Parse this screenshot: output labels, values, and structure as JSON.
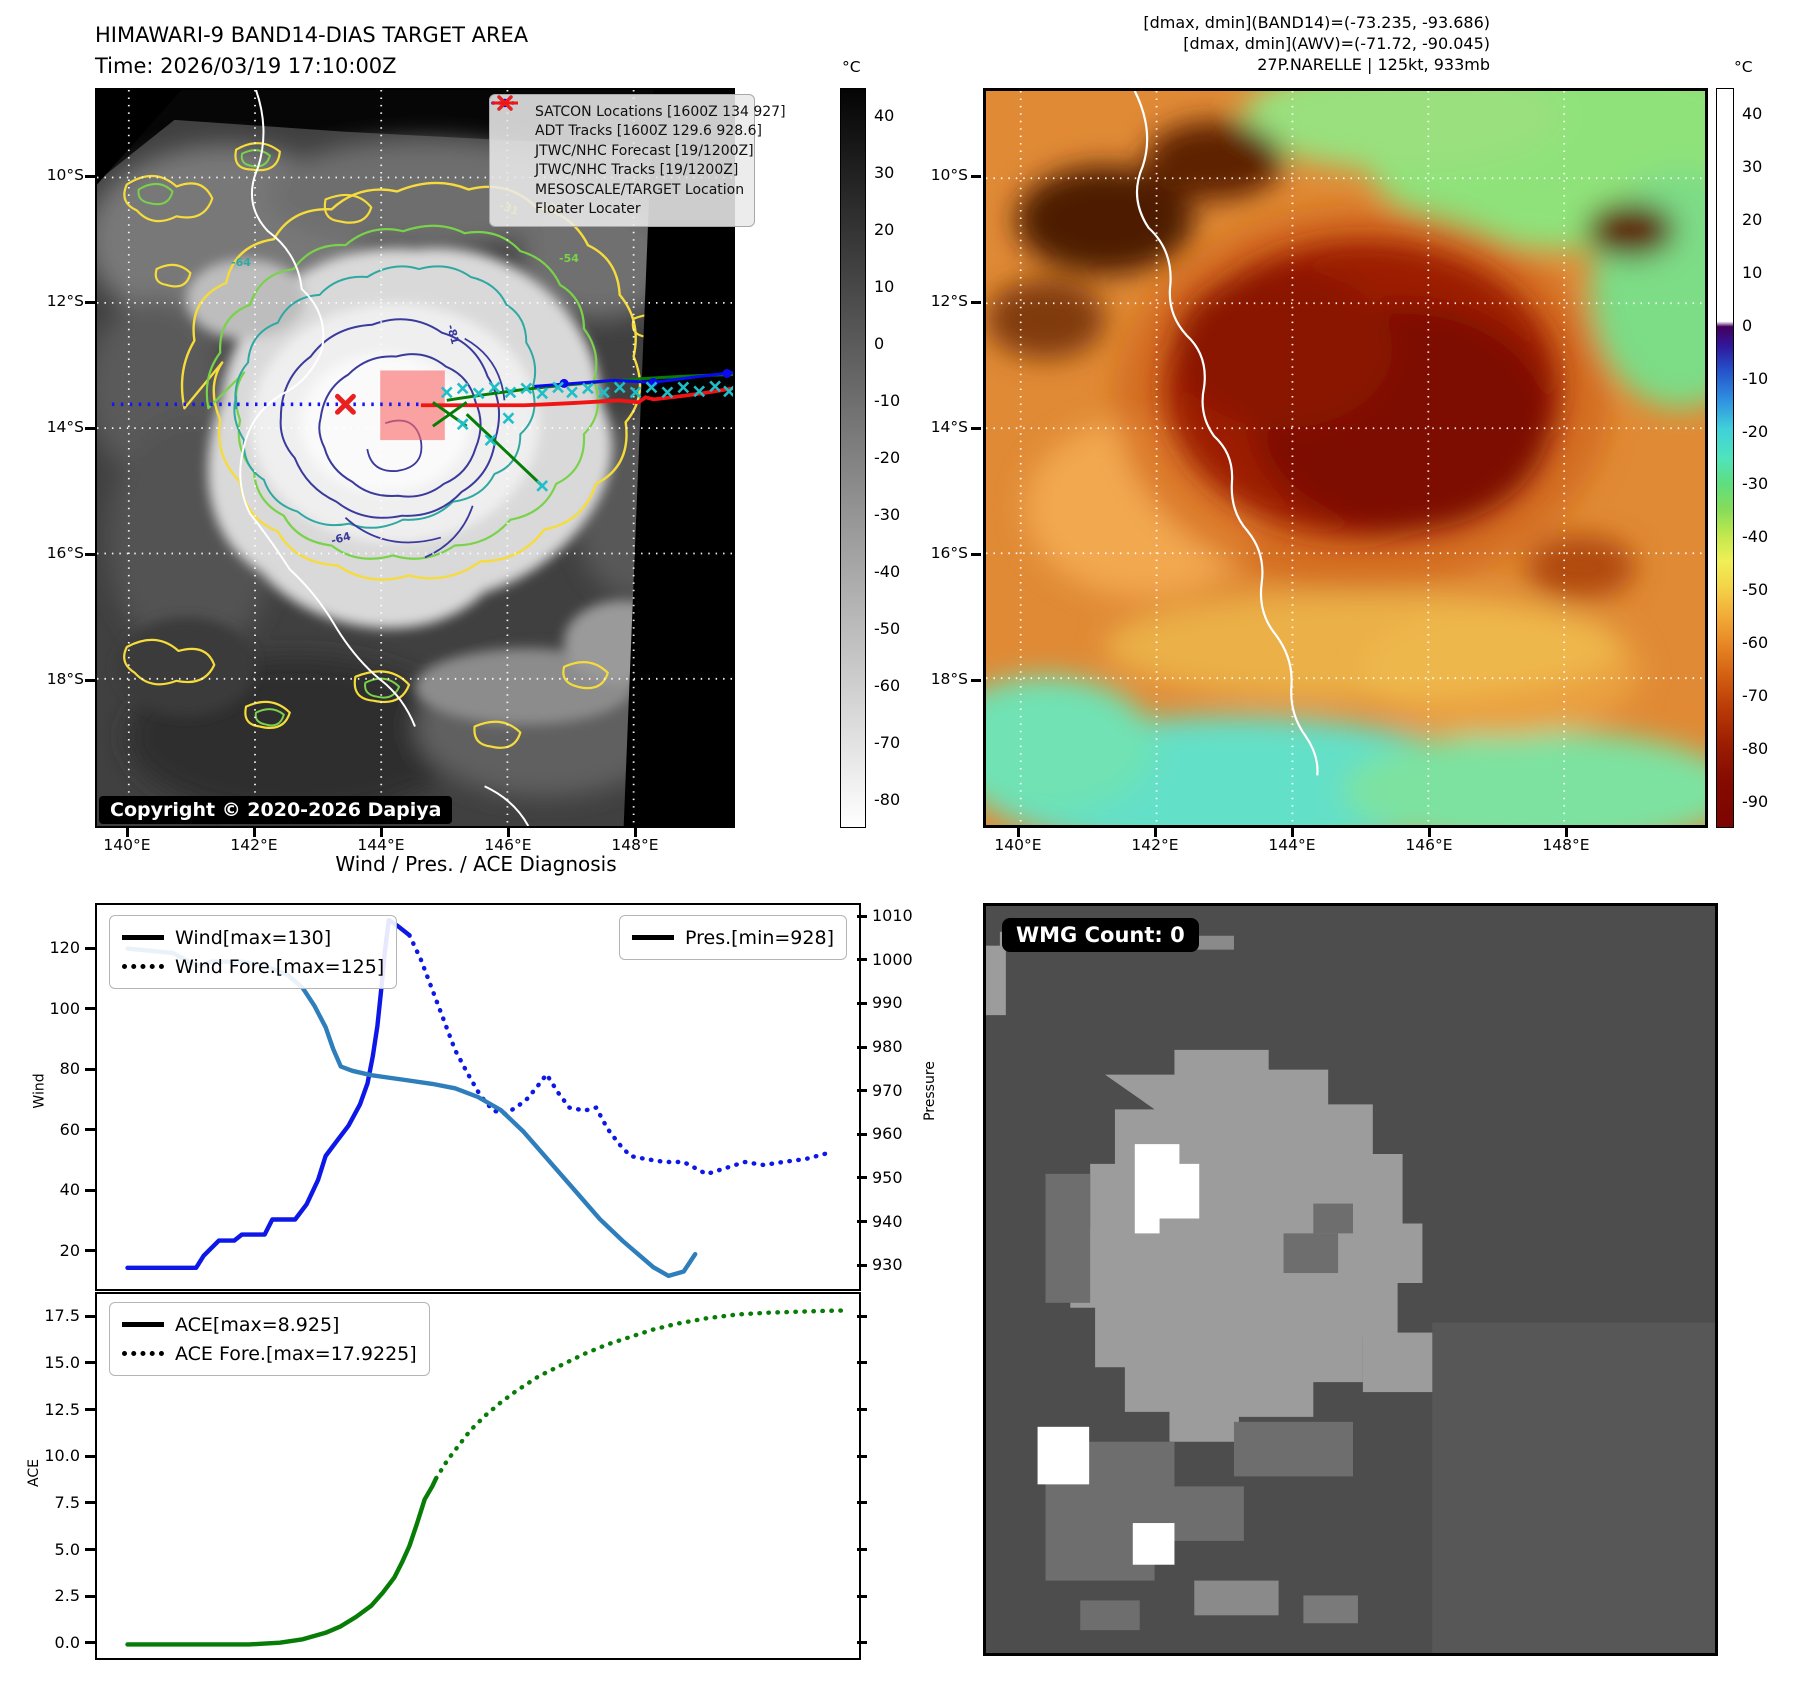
{
  "header": {
    "title_line1": "HIMAWARI-9 BAND14-DIAS TARGET AREA",
    "title_line2": "Time: 2026/03/19 17:10:00Z",
    "info_line1": "[dmax, dmin](BAND14)=(-73.235, -93.686)",
    "info_line2": "[dmax, dmin](AWV)=(-71.72, -90.045)",
    "info_line3": "27P.NARELLE | 125kt, 933mb"
  },
  "band14_map": {
    "lat_ticks": [
      "10°S",
      "12°S",
      "14°S",
      "16°S",
      "18°S"
    ],
    "lon_ticks": [
      "140°E",
      "142°E",
      "144°E",
      "146°E",
      "148°E"
    ],
    "legend": [
      {
        "type": "satcon",
        "label": "SATCON Locations [1600Z 134 927]"
      },
      {
        "type": "adt",
        "label": "ADT Tracks [1600Z 129.6 928.6]"
      },
      {
        "type": "forecast",
        "label": "JTWC/NHC Forecast [19/1200Z]"
      },
      {
        "type": "tracks",
        "label": "JTWC/NHC Tracks [19/1200Z]"
      },
      {
        "type": "target",
        "label": "MESOSCALE/TARGET Location"
      },
      {
        "type": "floater",
        "label": "Floater Locater"
      }
    ],
    "copyright": "Copyright © 2020-2026 Dapiya",
    "contour_labels": [
      "-64",
      "-31",
      "-81",
      "-54",
      "-64",
      "-31"
    ],
    "colorbar": {
      "unit": "°C",
      "vmax": 45,
      "vmin": -85,
      "ticks": [
        40,
        30,
        20,
        10,
        0,
        -10,
        -20,
        -30,
        -40,
        -50,
        -60,
        -70,
        -80
      ]
    }
  },
  "awv_map": {
    "lat_ticks": [
      "10°S",
      "12°S",
      "14°S",
      "16°S",
      "18°S"
    ],
    "lon_ticks": [
      "140°E",
      "142°E",
      "144°E",
      "146°E",
      "148°E"
    ],
    "colorbar": {
      "unit": "°C",
      "vmax": 45,
      "vmin": -95,
      "ticks": [
        40,
        30,
        20,
        10,
        0,
        -10,
        -20,
        -30,
        -40,
        -50,
        -60,
        -70,
        -80,
        -90
      ]
    }
  },
  "wmg_panel": {
    "badge": "WMG Count: 0"
  },
  "diagnosis": {
    "title": "Wind / Pres. / ACE Diagnosis",
    "wind_label": "Wind",
    "pressure_label": "Pressure",
    "ace_label": "ACE",
    "wind_ticks": [
      20,
      40,
      60,
      80,
      100,
      120
    ],
    "pressure_ticks": [
      930,
      940,
      950,
      960,
      970,
      980,
      990,
      1000,
      1010
    ],
    "ace_ticks": [
      "0.0",
      "2.5",
      "5.0",
      "7.5",
      "10.0",
      "12.5",
      "15.0",
      "17.5"
    ],
    "legend_wind": "Wind[max=130]",
    "legend_wind_fore": "Wind Fore.[max=125]",
    "legend_pres": "Pres.[min=928]",
    "legend_ace": "ACE[max=8.925]",
    "legend_ace_fore": "ACE Fore.[max=17.9225]"
  },
  "colors": {
    "satcon_cyan": "#1fbfc7",
    "adt_green": "#067d06",
    "jtwc_blue": "#0a0af0",
    "target_red": "#ea1f1f",
    "floater_red": "#f01414",
    "wind_blue": "#0d17e8",
    "pressure_steelblue": "#2e7ebc",
    "ace_green": "#077d07",
    "target_box_pink": "#fa6a6a"
  },
  "chart_data": [
    {
      "type": "line",
      "title": "Wind / Pres. / ACE Diagnosis",
      "ylabel": "Wind",
      "y2label": "Pressure",
      "xlim": [
        0,
        1
      ],
      "ylim": [
        8,
        135
      ],
      "y2lim": [
        925,
        1013
      ],
      "grid": false,
      "series": [
        {
          "name": "Wind[max=130]",
          "axis": "left",
          "style": "solid",
          "color": "#0d17e8",
          "points": [
            [
              0.04,
              15
            ],
            [
              0.13,
              15
            ],
            [
              0.14,
              19
            ],
            [
              0.16,
              24
            ],
            [
              0.18,
              24
            ],
            [
              0.19,
              26
            ],
            [
              0.22,
              26
            ],
            [
              0.23,
              31
            ],
            [
              0.26,
              31
            ],
            [
              0.275,
              36
            ],
            [
              0.29,
              44
            ],
            [
              0.3,
              52
            ],
            [
              0.315,
              57
            ],
            [
              0.33,
              62
            ],
            [
              0.345,
              69
            ],
            [
              0.355,
              76
            ],
            [
              0.362,
              85
            ],
            [
              0.368,
              95
            ],
            [
              0.373,
              107
            ],
            [
              0.378,
              120
            ],
            [
              0.383,
              130
            ],
            [
              0.395,
              128
            ],
            [
              0.41,
              125
            ]
          ]
        },
        {
          "name": "Wind Fore.[max=125]",
          "axis": "left",
          "style": "dotted",
          "color": "#0d17e8",
          "points": [
            [
              0.41,
              125
            ],
            [
              0.425,
              117
            ],
            [
              0.44,
              107
            ],
            [
              0.455,
              97
            ],
            [
              0.47,
              87
            ],
            [
              0.487,
              79
            ],
            [
              0.503,
              72
            ],
            [
              0.52,
              67
            ],
            [
              0.535,
              66
            ],
            [
              0.55,
              68
            ],
            [
              0.565,
              71
            ],
            [
              0.578,
              75
            ],
            [
              0.59,
              79
            ],
            [
              0.605,
              73
            ],
            [
              0.62,
              68
            ],
            [
              0.64,
              67
            ],
            [
              0.655,
              68
            ],
            [
              0.67,
              61
            ],
            [
              0.685,
              56
            ],
            [
              0.7,
              52
            ],
            [
              0.72,
              51
            ],
            [
              0.745,
              50
            ],
            [
              0.77,
              50
            ],
            [
              0.8,
              46
            ],
            [
              0.825,
              48
            ],
            [
              0.85,
              50
            ],
            [
              0.875,
              49
            ],
            [
              0.9,
              50
            ],
            [
              0.93,
              51
            ],
            [
              0.96,
              53
            ]
          ]
        },
        {
          "name": "Pres.[min=928]",
          "axis": "right",
          "style": "solid",
          "color": "#2e7ebc",
          "points": [
            [
              0.04,
              1003
            ],
            [
              0.1,
              1002
            ],
            [
              0.12,
              1000
            ],
            [
              0.135,
              999
            ],
            [
              0.15,
              1000
            ],
            [
              0.19,
              1000
            ],
            [
              0.22,
              999
            ],
            [
              0.25,
              997
            ],
            [
              0.27,
              994
            ],
            [
              0.285,
              990
            ],
            [
              0.3,
              985
            ],
            [
              0.31,
              980
            ],
            [
              0.32,
              976
            ],
            [
              0.335,
              975
            ],
            [
              0.36,
              974
            ],
            [
              0.4,
              973
            ],
            [
              0.44,
              972
            ],
            [
              0.47,
              971
            ],
            [
              0.5,
              969
            ],
            [
              0.53,
              966
            ],
            [
              0.56,
              961
            ],
            [
              0.6,
              953
            ],
            [
              0.63,
              947
            ],
            [
              0.66,
              941
            ],
            [
              0.69,
              936
            ],
            [
              0.71,
              933
            ],
            [
              0.73,
              930
            ],
            [
              0.75,
              928
            ],
            [
              0.77,
              929
            ],
            [
              0.785,
              933
            ]
          ]
        }
      ]
    },
    {
      "type": "line",
      "ylabel": "ACE",
      "xlim": [
        0,
        1
      ],
      "ylim": [
        -0.7,
        18.8
      ],
      "grid": false,
      "series": [
        {
          "name": "ACE[max=8.925]",
          "axis": "left",
          "style": "solid",
          "color": "#077d07",
          "points": [
            [
              0.04,
              0.03
            ],
            [
              0.2,
              0.03
            ],
            [
              0.24,
              0.12
            ],
            [
              0.27,
              0.3
            ],
            [
              0.3,
              0.65
            ],
            [
              0.32,
              1.0
            ],
            [
              0.34,
              1.5
            ],
            [
              0.36,
              2.1
            ],
            [
              0.375,
              2.8
            ],
            [
              0.39,
              3.6
            ],
            [
              0.4,
              4.4
            ],
            [
              0.41,
              5.3
            ],
            [
              0.42,
              6.5
            ],
            [
              0.43,
              7.8
            ],
            [
              0.44,
              8.5
            ],
            [
              0.445,
              8.925
            ]
          ]
        },
        {
          "name": "ACE Fore.[max=17.9225]",
          "axis": "left",
          "style": "dotted",
          "color": "#077d07",
          "points": [
            [
              0.445,
              8.925
            ],
            [
              0.46,
              9.9
            ],
            [
              0.475,
              10.7
            ],
            [
              0.49,
              11.5
            ],
            [
              0.51,
              12.3
            ],
            [
              0.53,
              13.0
            ],
            [
              0.55,
              13.6
            ],
            [
              0.58,
              14.4
            ],
            [
              0.61,
              15.0
            ],
            [
              0.64,
              15.6
            ],
            [
              0.67,
              16.1
            ],
            [
              0.7,
              16.5
            ],
            [
              0.73,
              16.9
            ],
            [
              0.76,
              17.2
            ],
            [
              0.8,
              17.5
            ],
            [
              0.84,
              17.7
            ],
            [
              0.88,
              17.8
            ],
            [
              0.92,
              17.85
            ],
            [
              0.96,
              17.9
            ],
            [
              0.985,
              17.92
            ]
          ]
        }
      ]
    }
  ]
}
